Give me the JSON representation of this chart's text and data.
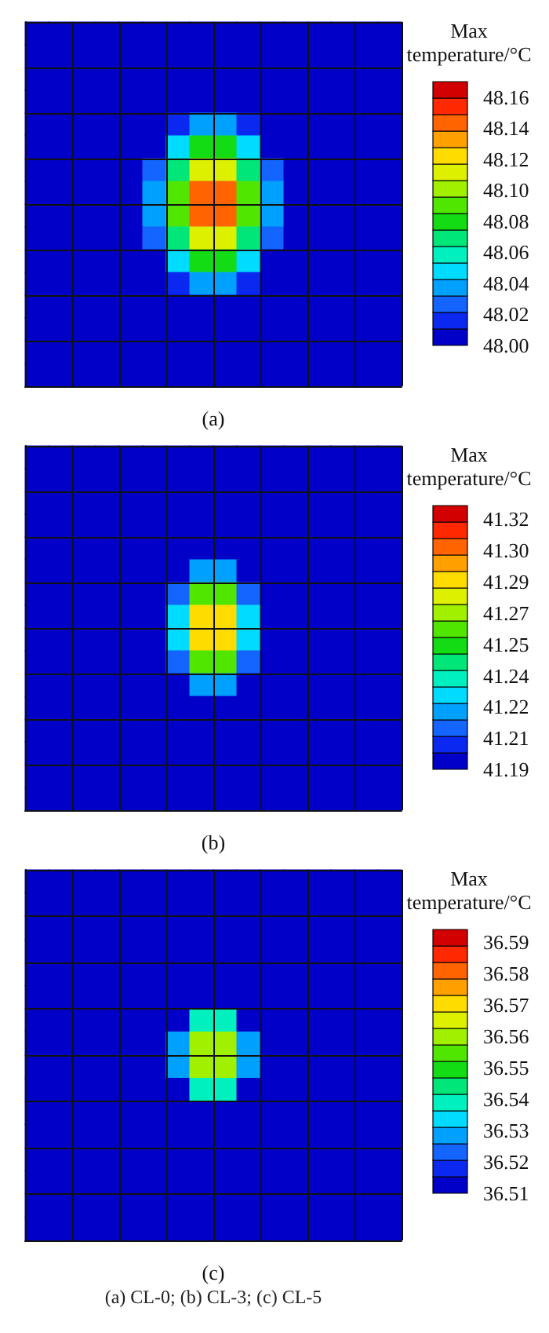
{
  "chart_data": [
    {
      "type": "heatmap",
      "xlabel": "(a)",
      "clabel": "Max temperature/°C",
      "tick_labels": false,
      "grid": true,
      "categories": [
        null,
        null,
        null,
        null,
        null,
        null,
        null,
        null,
        null,
        null,
        null,
        null,
        null,
        null,
        null,
        null
      ],
      "y_categories": [
        null,
        null,
        null,
        null,
        null,
        null,
        null,
        null,
        null,
        null,
        null,
        null,
        null,
        null,
        null,
        null
      ],
      "clim": [
        48.0,
        48.17
      ],
      "cticks": [
        {
          "value": 48.0,
          "label": "48.00"
        },
        {
          "value": 48.02,
          "label": "48.02"
        },
        {
          "value": 48.04,
          "label": "48.04"
        },
        {
          "value": 48.06,
          "label": "48.06"
        },
        {
          "value": 48.08,
          "label": "48.08"
        },
        {
          "value": 48.1,
          "label": "48.10"
        },
        {
          "value": 48.12,
          "label": "48.12"
        },
        {
          "value": 48.14,
          "label": "48.14"
        },
        {
          "value": 48.16,
          "label": "48.16"
        }
      ],
      "cells": [
        [
          48,
          48,
          48,
          48,
          48,
          48,
          48,
          48,
          48,
          48,
          48,
          48,
          48,
          48,
          48,
          48
        ],
        [
          48,
          48,
          48,
          48,
          48,
          48,
          48,
          48,
          48,
          48,
          48,
          48,
          48,
          48,
          48,
          48
        ],
        [
          48,
          48,
          48,
          48,
          48,
          48,
          48,
          48,
          48,
          48,
          48,
          48,
          48,
          48,
          48,
          48
        ],
        [
          48,
          48,
          48,
          48,
          48,
          48,
          48,
          48.01,
          48.01,
          48,
          48,
          48,
          48,
          48,
          48,
          48
        ],
        [
          48,
          48,
          48,
          48,
          48,
          48,
          48.02,
          48.04,
          48.04,
          48.02,
          48,
          48,
          48,
          48,
          48,
          48
        ],
        [
          48,
          48,
          48,
          48,
          48,
          48.01,
          48.05,
          48.08,
          48.08,
          48.05,
          48.01,
          48,
          48,
          48,
          48,
          48
        ],
        [
          48,
          48,
          48,
          48,
          48,
          48.03,
          48.07,
          48.11,
          48.11,
          48.07,
          48.03,
          48,
          48,
          48,
          48,
          48
        ],
        [
          48,
          48,
          48,
          48,
          48,
          48.04,
          48.09,
          48.14,
          48.14,
          48.09,
          48.04,
          48,
          48,
          48,
          48,
          48
        ],
        [
          48,
          48,
          48,
          48,
          48,
          48.04,
          48.09,
          48.14,
          48.14,
          48.09,
          48.04,
          48,
          48,
          48,
          48,
          48
        ],
        [
          48,
          48,
          48,
          48,
          48,
          48.03,
          48.07,
          48.11,
          48.11,
          48.07,
          48.03,
          48,
          48,
          48,
          48,
          48
        ],
        [
          48,
          48,
          48,
          48,
          48,
          48.01,
          48.05,
          48.08,
          48.08,
          48.05,
          48.01,
          48,
          48,
          48,
          48,
          48
        ],
        [
          48,
          48,
          48,
          48,
          48,
          48,
          48.02,
          48.04,
          48.04,
          48.02,
          48,
          48,
          48,
          48,
          48,
          48
        ],
        [
          48,
          48,
          48,
          48,
          48,
          48,
          48,
          48.01,
          48.01,
          48,
          48,
          48,
          48,
          48,
          48,
          48
        ],
        [
          48,
          48,
          48,
          48,
          48,
          48,
          48,
          48,
          48,
          48,
          48,
          48,
          48,
          48,
          48,
          48
        ],
        [
          48,
          48,
          48,
          48,
          48,
          48,
          48,
          48,
          48,
          48,
          48,
          48,
          48,
          48,
          48,
          48
        ],
        [
          48,
          48,
          48,
          48,
          48,
          48,
          48,
          48,
          48,
          48,
          48,
          48,
          48,
          48,
          48,
          48
        ]
      ]
    },
    {
      "type": "heatmap",
      "xlabel": "(b)",
      "clabel": "Max temperature/°C",
      "tick_labels": false,
      "grid": true,
      "categories": [
        null,
        null,
        null,
        null,
        null,
        null,
        null,
        null,
        null,
        null,
        null,
        null,
        null,
        null,
        null,
        null
      ],
      "y_categories": [
        null,
        null,
        null,
        null,
        null,
        null,
        null,
        null,
        null,
        null,
        null,
        null,
        null,
        null,
        null,
        null
      ],
      "clim": [
        41.19,
        41.325
      ],
      "cticks": [
        {
          "value": 41.19,
          "label": "41.19"
        },
        {
          "value": 41.206,
          "label": "41.21"
        },
        {
          "value": 41.222,
          "label": "41.22"
        },
        {
          "value": 41.238,
          "label": "41.24"
        },
        {
          "value": 41.254,
          "label": "41.25"
        },
        {
          "value": 41.27,
          "label": "41.27"
        },
        {
          "value": 41.286,
          "label": "41.29"
        },
        {
          "value": 41.302,
          "label": "41.30"
        },
        {
          "value": 41.318,
          "label": "41.32"
        }
      ],
      "cells": [
        [
          41.19,
          41.19,
          41.19,
          41.19,
          41.19,
          41.19,
          41.19,
          41.19,
          41.19,
          41.19,
          41.19,
          41.19,
          41.19,
          41.19,
          41.19,
          41.19
        ],
        [
          41.19,
          41.19,
          41.19,
          41.19,
          41.19,
          41.19,
          41.19,
          41.19,
          41.19,
          41.19,
          41.19,
          41.19,
          41.19,
          41.19,
          41.19,
          41.19
        ],
        [
          41.19,
          41.19,
          41.19,
          41.19,
          41.19,
          41.19,
          41.19,
          41.19,
          41.19,
          41.19,
          41.19,
          41.19,
          41.19,
          41.19,
          41.19,
          41.19
        ],
        [
          41.19,
          41.19,
          41.19,
          41.19,
          41.19,
          41.19,
          41.19,
          41.19,
          41.19,
          41.19,
          41.19,
          41.19,
          41.19,
          41.19,
          41.19,
          41.19
        ],
        [
          41.19,
          41.19,
          41.19,
          41.19,
          41.19,
          41.19,
          41.19,
          41.19,
          41.19,
          41.19,
          41.19,
          41.19,
          41.19,
          41.19,
          41.19,
          41.19
        ],
        [
          41.19,
          41.19,
          41.19,
          41.19,
          41.19,
          41.19,
          41.19,
          41.22,
          41.22,
          41.19,
          41.19,
          41.19,
          41.19,
          41.19,
          41.19,
          41.19
        ],
        [
          41.19,
          41.19,
          41.19,
          41.19,
          41.19,
          41.19,
          41.21,
          41.26,
          41.26,
          41.21,
          41.19,
          41.19,
          41.19,
          41.19,
          41.19,
          41.19
        ],
        [
          41.19,
          41.19,
          41.19,
          41.19,
          41.19,
          41.19,
          41.23,
          41.29,
          41.29,
          41.23,
          41.19,
          41.19,
          41.19,
          41.19,
          41.19,
          41.19
        ],
        [
          41.19,
          41.19,
          41.19,
          41.19,
          41.19,
          41.19,
          41.23,
          41.29,
          41.29,
          41.23,
          41.19,
          41.19,
          41.19,
          41.19,
          41.19,
          41.19
        ],
        [
          41.19,
          41.19,
          41.19,
          41.19,
          41.19,
          41.19,
          41.21,
          41.26,
          41.26,
          41.21,
          41.19,
          41.19,
          41.19,
          41.19,
          41.19,
          41.19
        ],
        [
          41.19,
          41.19,
          41.19,
          41.19,
          41.19,
          41.19,
          41.19,
          41.22,
          41.22,
          41.19,
          41.19,
          41.19,
          41.19,
          41.19,
          41.19,
          41.19
        ],
        [
          41.19,
          41.19,
          41.19,
          41.19,
          41.19,
          41.19,
          41.19,
          41.19,
          41.19,
          41.19,
          41.19,
          41.19,
          41.19,
          41.19,
          41.19,
          41.19
        ],
        [
          41.19,
          41.19,
          41.19,
          41.19,
          41.19,
          41.19,
          41.19,
          41.19,
          41.19,
          41.19,
          41.19,
          41.19,
          41.19,
          41.19,
          41.19,
          41.19
        ],
        [
          41.19,
          41.19,
          41.19,
          41.19,
          41.19,
          41.19,
          41.19,
          41.19,
          41.19,
          41.19,
          41.19,
          41.19,
          41.19,
          41.19,
          41.19,
          41.19
        ],
        [
          41.19,
          41.19,
          41.19,
          41.19,
          41.19,
          41.19,
          41.19,
          41.19,
          41.19,
          41.19,
          41.19,
          41.19,
          41.19,
          41.19,
          41.19,
          41.19
        ],
        [
          41.19,
          41.19,
          41.19,
          41.19,
          41.19,
          41.19,
          41.19,
          41.19,
          41.19,
          41.19,
          41.19,
          41.19,
          41.19,
          41.19,
          41.19,
          41.19
        ]
      ]
    },
    {
      "type": "heatmap",
      "xlabel": "(c)",
      "clabel": "Max temperature/°C",
      "tick_labels": false,
      "grid": true,
      "annotations": [
        "(a) CL-0; (b) CL-3; (c) CL-5"
      ],
      "categories": [
        null,
        null,
        null,
        null,
        null,
        null,
        null,
        null,
        null,
        null,
        null,
        null,
        null,
        null,
        null,
        null
      ],
      "y_categories": [
        null,
        null,
        null,
        null,
        null,
        null,
        null,
        null,
        null,
        null,
        null,
        null,
        null,
        null,
        null,
        null
      ],
      "clim": [
        36.51,
        36.594
      ],
      "cticks": [
        {
          "value": 36.51,
          "label": "36.51"
        },
        {
          "value": 36.52,
          "label": "36.52"
        },
        {
          "value": 36.53,
          "label": "36.53"
        },
        {
          "value": 36.54,
          "label": "36.54"
        },
        {
          "value": 36.55,
          "label": "36.55"
        },
        {
          "value": 36.56,
          "label": "36.56"
        },
        {
          "value": 36.57,
          "label": "36.57"
        },
        {
          "value": 36.58,
          "label": "36.58"
        },
        {
          "value": 36.59,
          "label": "36.59"
        }
      ],
      "cells": [
        [
          36.51,
          36.51,
          36.51,
          36.51,
          36.51,
          36.51,
          36.51,
          36.51,
          36.51,
          36.51,
          36.51,
          36.51,
          36.51,
          36.51,
          36.51,
          36.51
        ],
        [
          36.51,
          36.51,
          36.51,
          36.51,
          36.51,
          36.51,
          36.51,
          36.51,
          36.51,
          36.51,
          36.51,
          36.51,
          36.51,
          36.51,
          36.51,
          36.51
        ],
        [
          36.51,
          36.51,
          36.51,
          36.51,
          36.51,
          36.51,
          36.51,
          36.51,
          36.51,
          36.51,
          36.51,
          36.51,
          36.51,
          36.51,
          36.51,
          36.51
        ],
        [
          36.51,
          36.51,
          36.51,
          36.51,
          36.51,
          36.51,
          36.51,
          36.51,
          36.51,
          36.51,
          36.51,
          36.51,
          36.51,
          36.51,
          36.51,
          36.51
        ],
        [
          36.51,
          36.51,
          36.51,
          36.51,
          36.51,
          36.51,
          36.51,
          36.51,
          36.51,
          36.51,
          36.51,
          36.51,
          36.51,
          36.51,
          36.51,
          36.51
        ],
        [
          36.51,
          36.51,
          36.51,
          36.51,
          36.51,
          36.51,
          36.51,
          36.51,
          36.51,
          36.51,
          36.51,
          36.51,
          36.51,
          36.51,
          36.51,
          36.51
        ],
        [
          36.51,
          36.51,
          36.51,
          36.51,
          36.51,
          36.51,
          36.51,
          36.54,
          36.54,
          36.51,
          36.51,
          36.51,
          36.51,
          36.51,
          36.51,
          36.51
        ],
        [
          36.51,
          36.51,
          36.51,
          36.51,
          36.51,
          36.51,
          36.53,
          36.56,
          36.56,
          36.53,
          36.51,
          36.51,
          36.51,
          36.51,
          36.51,
          36.51
        ],
        [
          36.51,
          36.51,
          36.51,
          36.51,
          36.51,
          36.51,
          36.53,
          36.56,
          36.56,
          36.53,
          36.51,
          36.51,
          36.51,
          36.51,
          36.51,
          36.51
        ],
        [
          36.51,
          36.51,
          36.51,
          36.51,
          36.51,
          36.51,
          36.51,
          36.54,
          36.54,
          36.51,
          36.51,
          36.51,
          36.51,
          36.51,
          36.51,
          36.51
        ],
        [
          36.51,
          36.51,
          36.51,
          36.51,
          36.51,
          36.51,
          36.51,
          36.51,
          36.51,
          36.51,
          36.51,
          36.51,
          36.51,
          36.51,
          36.51,
          36.51
        ],
        [
          36.51,
          36.51,
          36.51,
          36.51,
          36.51,
          36.51,
          36.51,
          36.51,
          36.51,
          36.51,
          36.51,
          36.51,
          36.51,
          36.51,
          36.51,
          36.51
        ],
        [
          36.51,
          36.51,
          36.51,
          36.51,
          36.51,
          36.51,
          36.51,
          36.51,
          36.51,
          36.51,
          36.51,
          36.51,
          36.51,
          36.51,
          36.51,
          36.51
        ],
        [
          36.51,
          36.51,
          36.51,
          36.51,
          36.51,
          36.51,
          36.51,
          36.51,
          36.51,
          36.51,
          36.51,
          36.51,
          36.51,
          36.51,
          36.51,
          36.51
        ],
        [
          36.51,
          36.51,
          36.51,
          36.51,
          36.51,
          36.51,
          36.51,
          36.51,
          36.51,
          36.51,
          36.51,
          36.51,
          36.51,
          36.51,
          36.51,
          36.51
        ],
        [
          36.51,
          36.51,
          36.51,
          36.51,
          36.51,
          36.51,
          36.51,
          36.51,
          36.51,
          36.51,
          36.51,
          36.51,
          36.51,
          36.51,
          36.51,
          36.51
        ]
      ]
    }
  ]
}
